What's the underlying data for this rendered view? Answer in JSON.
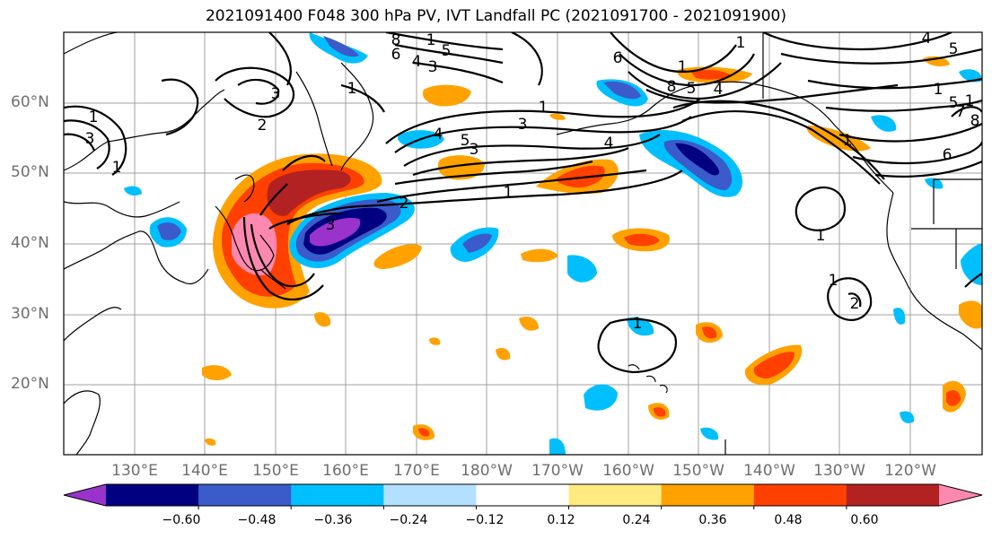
{
  "title": "2021091400 F048 300 hPa PV, IVT Landfall PC (2021091700 - 2021091900)",
  "lat_labels": [
    "60°N",
    "50°N",
    "40°N",
    "30°N",
    "20°N"
  ],
  "lon_labels": [
    "130°E",
    "140°E",
    "150°E",
    "160°E",
    "170°E",
    "180°W",
    "170°W",
    "160°W",
    "150°W",
    "140°W",
    "130°W",
    "120°W"
  ],
  "colorbar": {
    "tick_labels": [
      "−0.60",
      "−0.48",
      "−0.36",
      "−0.24",
      "−0.12",
      "0.12",
      "0.24",
      "0.36",
      "0.48",
      "0.60"
    ],
    "colors": [
      "#9933cc",
      "#000080",
      "#3a5bc9",
      "#00bfff",
      "#b3e0ff",
      "#ffffff",
      "#ffea80",
      "#ffa200",
      "#ff4000",
      "#b22222",
      "#ff88b0"
    ]
  },
  "palette": {
    "neg_strong": "#9933cc",
    "neg_navy": "#000080",
    "neg_blue": "#3a5bc9",
    "neg_sky": "#00bfff",
    "neg_light": "#b3e0ff",
    "pos_yellow": "#ffea80",
    "pos_orange": "#ffa200",
    "pos_red": "#ff4000",
    "pos_darkred": "#b22222",
    "pos_pink": "#ff88b0"
  },
  "contour_labels": [
    "1",
    "3",
    "2",
    "1",
    "3",
    "4",
    "1",
    "1",
    "3",
    "4",
    "5",
    "3",
    "4",
    "5",
    "1",
    "2",
    "3",
    "1",
    "1",
    "8",
    "6",
    "4",
    "3",
    "5",
    "1",
    "7",
    "8",
    "6",
    "5",
    "1",
    "4",
    "5",
    "1",
    "8",
    "6",
    "1",
    "1",
    "2",
    "1",
    "1"
  ]
}
